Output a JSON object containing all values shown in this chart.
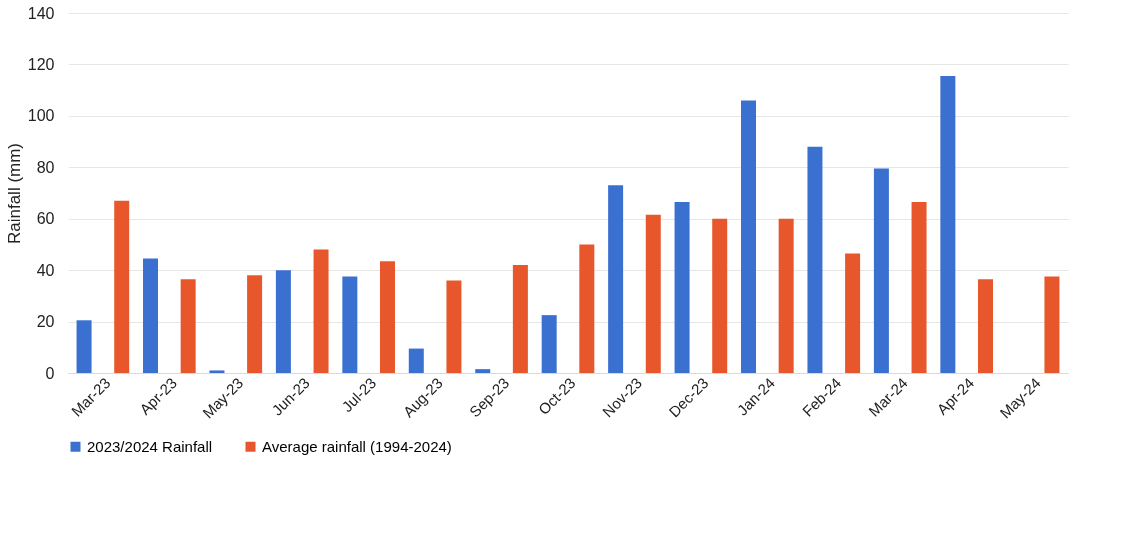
{
  "chart_data": {
    "type": "bar",
    "ylabel": "Rainfall (mm)",
    "categories": [
      "Mar-23",
      "Apr-23",
      "May-23",
      "Jun-23",
      "Jul-23",
      "Aug-23",
      "Sep-23",
      "Oct-23",
      "Nov-23",
      "Dec-23",
      "Jan-24",
      "Feb-24",
      "Mar-24",
      "Apr-24",
      "May-24"
    ],
    "series": [
      {
        "name": "2023/2024 Rainfall",
        "color": "#3a70d0",
        "values": [
          20.5,
          44.5,
          1,
          40,
          37.5,
          9.5,
          1.5,
          22.5,
          73,
          66.5,
          106,
          88,
          79.5,
          115.5,
          null
        ]
      },
      {
        "name": "Average rainfall (1994-2024)",
        "color": "#e8572b",
        "values": [
          67,
          36.5,
          38,
          48,
          43.5,
          36,
          42,
          50,
          61.5,
          60,
          60,
          46.5,
          66.5,
          36.5,
          37.5
        ]
      }
    ],
    "ylim": [
      0,
      140
    ],
    "yticks": [
      0,
      20,
      40,
      60,
      80,
      100,
      120,
      140
    ],
    "grid": "y",
    "legend": "bottom"
  }
}
